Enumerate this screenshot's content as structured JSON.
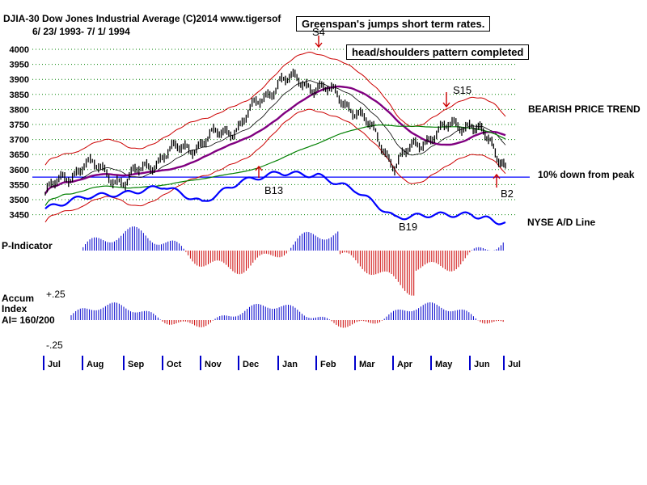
{
  "header": {
    "line1": "DJIA-30  Dow Jones Industrial Average   (C)2014 www.tigersof",
    "line2": "6/ 23/ 1993- 7/ 1/ 1994"
  },
  "annotations": {
    "greenspan": "Greenspan's jumps short term rates.",
    "head_shoulders": "head/shoulders pattern completed",
    "bearish": "BEARISH PRICE TREND",
    "down_from_peak": "10% down from peak",
    "nyse_ad": "NYSE A/D Line",
    "s4": "S4",
    "s15": "S15",
    "b13": "B13",
    "b19": "B19",
    "b2": "B2"
  },
  "panels": {
    "p_indicator": "P-Indicator",
    "accum_line1": "Accum",
    "accum_line2": "Index",
    "accum_line3": "AI= 160/200",
    "accum_top": "+.25",
    "accum_bottom": "-.25"
  },
  "colors": {
    "price_bars": "#000000",
    "ma_purple": "#800080",
    "ma_green": "#008000",
    "band_red": "#cc0000",
    "ad_line": "#0000ff",
    "indicator_pos": "#0000cc",
    "indicator_neg": "#cc0000",
    "grid": "#008000"
  },
  "chart_data": {
    "type": "line",
    "title": "DJIA-30  Dow Jones Industrial Average",
    "y_ticks": [
      4000,
      3950,
      3900,
      3850,
      3800,
      3750,
      3700,
      3650,
      3600,
      3550,
      3500,
      3450
    ],
    "ylim": [
      3450,
      4000
    ],
    "x_months": [
      "Jul",
      "Aug",
      "Sep",
      "Oct",
      "Nov",
      "Dec",
      "Jan",
      "Feb",
      "Mar",
      "Apr",
      "May",
      "Jun",
      "Jul"
    ],
    "grid": true,
    "reference_line": 3575,
    "series": [
      {
        "name": "DJIA",
        "x": [
          "Jul",
          "Aug",
          "Sep",
          "Oct",
          "Nov",
          "Dec",
          "Jan",
          "Feb",
          "Mar",
          "Apr",
          "May",
          "Jun",
          "Jul"
        ],
        "values": [
          3520,
          3620,
          3560,
          3650,
          3690,
          3750,
          3900,
          3880,
          3800,
          3620,
          3720,
          3760,
          3620
        ]
      },
      {
        "name": "NYSE A/D Line",
        "x": [
          "Jul",
          "Aug",
          "Sep",
          "Oct",
          "Nov",
          "Dec",
          "Jan",
          "Feb",
          "Mar",
          "Apr",
          "May",
          "Jun",
          "Jul"
        ],
        "values": [
          3470,
          3510,
          3520,
          3545,
          3490,
          3560,
          3590,
          3580,
          3530,
          3440,
          3450,
          3450,
          3420
        ]
      }
    ]
  }
}
